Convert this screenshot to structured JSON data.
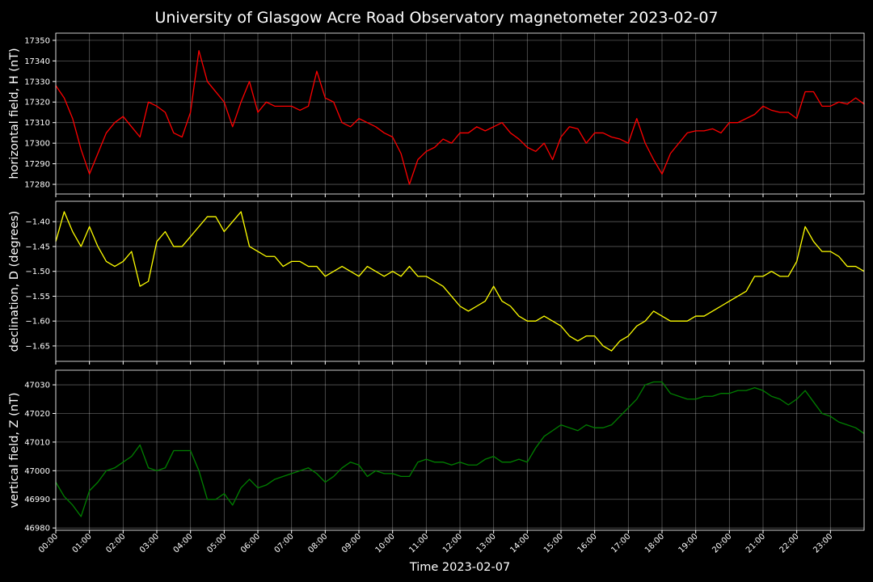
{
  "title": "University of Glasgow Acre Road Observatory magnetometer 2023-02-07",
  "chart_data": [
    {
      "type": "line",
      "ylabel": "horizontal field, H (nT)",
      "color": "#ff0000",
      "grid": true,
      "x": [
        0,
        0.25,
        0.5,
        0.75,
        1,
        1.25,
        1.5,
        1.75,
        2,
        2.25,
        2.5,
        2.75,
        3,
        3.25,
        3.5,
        3.75,
        4,
        4.25,
        4.5,
        4.75,
        5,
        5.25,
        5.5,
        5.75,
        6,
        6.25,
        6.5,
        6.75,
        7,
        7.25,
        7.5,
        7.75,
        8,
        8.25,
        8.5,
        8.75,
        9,
        9.25,
        9.5,
        9.75,
        10,
        10.25,
        10.5,
        10.75,
        11,
        11.25,
        11.5,
        11.75,
        12,
        12.25,
        12.5,
        12.75,
        13,
        13.25,
        13.5,
        13.75,
        14,
        14.25,
        14.5,
        14.75,
        15,
        15.25,
        15.5,
        15.75,
        16,
        16.25,
        16.5,
        16.75,
        17,
        17.25,
        17.5,
        17.75,
        18,
        18.25,
        18.5,
        18.75,
        19,
        19.25,
        19.5,
        19.75,
        20,
        20.25,
        20.5,
        20.75,
        21,
        21.25,
        21.5,
        21.75,
        22,
        22.25,
        22.5,
        22.75,
        23,
        23.25,
        23.5,
        23.75,
        24
      ],
      "values": [
        17328,
        17322,
        17312,
        17297,
        17285,
        17295,
        17305,
        17310,
        17313,
        17308,
        17303,
        17320,
        17318,
        17315,
        17305,
        17303,
        17315,
        17345,
        17330,
        17325,
        17320,
        17308,
        17320,
        17330,
        17315,
        17320,
        17318,
        17318,
        17318,
        17316,
        17318,
        17335,
        17322,
        17320,
        17310,
        17308,
        17312,
        17310,
        17308,
        17305,
        17303,
        17295,
        17280,
        17292,
        17296,
        17298,
        17302,
        17300,
        17305,
        17305,
        17308,
        17306,
        17308,
        17310,
        17305,
        17302,
        17298,
        17296,
        17300,
        17292,
        17303,
        17308,
        17307,
        17300,
        17305,
        17305,
        17303,
        17302,
        17300,
        17312,
        17300,
        17292,
        17285,
        17295,
        17300,
        17305,
        17306,
        17306,
        17307,
        17305,
        17310,
        17310,
        17312,
        17314,
        17318,
        17316,
        17315,
        17315,
        17312,
        17325,
        17325,
        17318,
        17318,
        17320,
        17319,
        17322,
        17319
      ],
      "xlim": [
        0,
        24
      ],
      "ylim": [
        17275.3,
        17353.5
      ],
      "yticks": [
        17280,
        17290,
        17300,
        17310,
        17320,
        17330,
        17340,
        17350
      ]
    },
    {
      "type": "line",
      "ylabel": "declination, D (degrees)",
      "color": "#ffff00",
      "grid": true,
      "x": [
        0,
        0.25,
        0.5,
        0.75,
        1,
        1.25,
        1.5,
        1.75,
        2,
        2.25,
        2.5,
        2.75,
        3,
        3.25,
        3.5,
        3.75,
        4,
        4.25,
        4.5,
        4.75,
        5,
        5.25,
        5.5,
        5.75,
        6,
        6.25,
        6.5,
        6.75,
        7,
        7.25,
        7.5,
        7.75,
        8,
        8.25,
        8.5,
        8.75,
        9,
        9.25,
        9.5,
        9.75,
        10,
        10.25,
        10.5,
        10.75,
        11,
        11.25,
        11.5,
        11.75,
        12,
        12.25,
        12.5,
        12.75,
        13,
        13.25,
        13.5,
        13.75,
        14,
        14.25,
        14.5,
        14.75,
        15,
        15.25,
        15.5,
        15.75,
        16,
        16.25,
        16.5,
        16.75,
        17,
        17.25,
        17.5,
        17.75,
        18,
        18.25,
        18.5,
        18.75,
        19,
        19.25,
        19.5,
        19.75,
        20,
        20.25,
        20.5,
        20.75,
        21,
        21.25,
        21.5,
        21.75,
        22,
        22.25,
        22.5,
        22.75,
        23,
        23.25,
        23.5,
        23.75,
        24
      ],
      "values": [
        -1.44,
        -1.38,
        -1.42,
        -1.45,
        -1.41,
        -1.45,
        -1.48,
        -1.49,
        -1.48,
        -1.46,
        -1.53,
        -1.52,
        -1.44,
        -1.42,
        -1.45,
        -1.45,
        -1.43,
        -1.41,
        -1.39,
        -1.39,
        -1.42,
        -1.4,
        -1.38,
        -1.45,
        -1.46,
        -1.47,
        -1.47,
        -1.49,
        -1.48,
        -1.48,
        -1.49,
        -1.49,
        -1.51,
        -1.5,
        -1.49,
        -1.5,
        -1.51,
        -1.49,
        -1.5,
        -1.51,
        -1.5,
        -1.51,
        -1.49,
        -1.51,
        -1.51,
        -1.52,
        -1.53,
        -1.55,
        -1.57,
        -1.58,
        -1.57,
        -1.56,
        -1.53,
        -1.56,
        -1.57,
        -1.59,
        -1.6,
        -1.6,
        -1.59,
        -1.6,
        -1.61,
        -1.63,
        -1.64,
        -1.63,
        -1.63,
        -1.65,
        -1.66,
        -1.64,
        -1.63,
        -1.61,
        -1.6,
        -1.58,
        -1.59,
        -1.6,
        -1.6,
        -1.6,
        -1.59,
        -1.59,
        -1.58,
        -1.57,
        -1.56,
        -1.55,
        -1.54,
        -1.51,
        -1.51,
        -1.5,
        -1.51,
        -1.51,
        -1.48,
        -1.41,
        -1.44,
        -1.46,
        -1.46,
        -1.47,
        -1.49,
        -1.49,
        -1.5
      ],
      "xlim": [
        0,
        24
      ],
      "ylim": [
        -1.681,
        -1.359
      ],
      "yticks": [
        {
          "value": -1.65,
          "label": "−1.65"
        },
        {
          "value": -1.6,
          "label": "−1.60"
        },
        {
          "value": -1.55,
          "label": "−1.55"
        },
        {
          "value": -1.5,
          "label": "−1.50"
        },
        {
          "value": -1.45,
          "label": "−1.45"
        },
        {
          "value": -1.4,
          "label": "−1.40"
        }
      ]
    },
    {
      "type": "line",
      "ylabel": "vertical field, Z (nT)",
      "xlabel": "Time 2023-02-07",
      "color": "#008000",
      "grid": true,
      "x": [
        0,
        0.25,
        0.5,
        0.75,
        1,
        1.25,
        1.5,
        1.75,
        2,
        2.25,
        2.5,
        2.75,
        3,
        3.25,
        3.5,
        3.75,
        4,
        4.25,
        4.5,
        4.75,
        5,
        5.25,
        5.5,
        5.75,
        6,
        6.25,
        6.5,
        6.75,
        7,
        7.25,
        7.5,
        7.75,
        8,
        8.25,
        8.5,
        8.75,
        9,
        9.25,
        9.5,
        9.75,
        10,
        10.25,
        10.5,
        10.75,
        11,
        11.25,
        11.5,
        11.75,
        12,
        12.25,
        12.5,
        12.75,
        13,
        13.25,
        13.5,
        13.75,
        14,
        14.25,
        14.5,
        14.75,
        15,
        15.25,
        15.5,
        15.75,
        16,
        16.25,
        16.5,
        16.75,
        17,
        17.25,
        17.5,
        17.75,
        18,
        18.25,
        18.5,
        18.75,
        19,
        19.25,
        19.5,
        19.75,
        20,
        20.25,
        20.5,
        20.75,
        21,
        21.25,
        21.5,
        21.75,
        22,
        22.25,
        22.5,
        22.75,
        23,
        23.25,
        23.5,
        23.75,
        24
      ],
      "values": [
        46996,
        46991,
        46988,
        46984,
        46993,
        46996,
        47000,
        47001,
        47003,
        47005,
        47009,
        47001,
        47000,
        47001,
        47007,
        47007,
        47007,
        47000,
        46990,
        46990,
        46992,
        46988,
        46994,
        46997,
        46994,
        46995,
        46997,
        46998,
        46999,
        47000,
        47001,
        46999,
        46996,
        46998,
        47001,
        47003,
        47002,
        46998,
        47000,
        46999,
        46999,
        46998,
        46998,
        47003,
        47004,
        47003,
        47003,
        47002,
        47003,
        47002,
        47002,
        47004,
        47005,
        47003,
        47003,
        47004,
        47003,
        47008,
        47012,
        47014,
        47016,
        47015,
        47014,
        47016,
        47015,
        47015,
        47016,
        47019,
        47022,
        47025,
        47030,
        47031,
        47031,
        47027,
        47026,
        47025,
        47025,
        47026,
        47026,
        47027,
        47027,
        47028,
        47028,
        47029,
        47028,
        47026,
        47025,
        47023,
        47025,
        47028,
        47024,
        47020,
        47019,
        47017,
        47016,
        47015,
        47013
      ],
      "xlim": [
        0,
        24
      ],
      "ylim": [
        46979.2,
        47035.1
      ],
      "yticks": [
        46980,
        46990,
        47000,
        47010,
        47020,
        47030
      ],
      "xticks": [
        {
          "value": 0,
          "label": "00:00"
        },
        {
          "value": 1,
          "label": "01:00"
        },
        {
          "value": 2,
          "label": "02:00"
        },
        {
          "value": 3,
          "label": "03:00"
        },
        {
          "value": 4,
          "label": "04:00"
        },
        {
          "value": 5,
          "label": "05:00"
        },
        {
          "value": 6,
          "label": "06:00"
        },
        {
          "value": 7,
          "label": "07:00"
        },
        {
          "value": 8,
          "label": "08:00"
        },
        {
          "value": 9,
          "label": "09:00"
        },
        {
          "value": 10,
          "label": "10:00"
        },
        {
          "value": 11,
          "label": "11:00"
        },
        {
          "value": 12,
          "label": "12:00"
        },
        {
          "value": 13,
          "label": "13:00"
        },
        {
          "value": 14,
          "label": "14:00"
        },
        {
          "value": 15,
          "label": "15:00"
        },
        {
          "value": 16,
          "label": "16:00"
        },
        {
          "value": 17,
          "label": "17:00"
        },
        {
          "value": 18,
          "label": "18:00"
        },
        {
          "value": 19,
          "label": "19:00"
        },
        {
          "value": 20,
          "label": "20:00"
        },
        {
          "value": 21,
          "label": "21:00"
        },
        {
          "value": 22,
          "label": "22:00"
        },
        {
          "value": 23,
          "label": "23:00"
        }
      ]
    }
  ]
}
